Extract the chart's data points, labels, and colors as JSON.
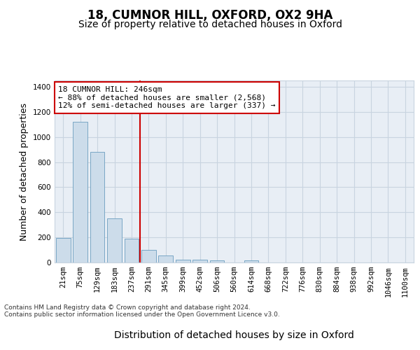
{
  "title": "18, CUMNOR HILL, OXFORD, OX2 9HA",
  "subtitle": "Size of property relative to detached houses in Oxford",
  "xlabel": "Distribution of detached houses by size in Oxford",
  "ylabel": "Number of detached properties",
  "categories": [
    "21sqm",
    "75sqm",
    "129sqm",
    "183sqm",
    "237sqm",
    "291sqm",
    "345sqm",
    "399sqm",
    "452sqm",
    "506sqm",
    "560sqm",
    "614sqm",
    "668sqm",
    "722sqm",
    "776sqm",
    "830sqm",
    "884sqm",
    "938sqm",
    "992sqm",
    "1046sqm",
    "1100sqm"
  ],
  "bar_heights": [
    195,
    1120,
    880,
    350,
    190,
    100,
    55,
    25,
    20,
    18,
    0,
    15,
    0,
    0,
    0,
    0,
    0,
    0,
    0,
    0,
    0
  ],
  "bar_color": "#ccdcea",
  "bar_edge_color": "#6a9dbf",
  "grid_color": "#c8d4e0",
  "background_color": "#e8eef5",
  "vline_x": 4.5,
  "vline_color": "#cc0000",
  "annotation_text": "18 CUMNOR HILL: 246sqm\n← 88% of detached houses are smaller (2,568)\n12% of semi-detached houses are larger (337) →",
  "annotation_box_color": "#ffffff",
  "annotation_box_edge_color": "#cc0000",
  "footer_text": "Contains HM Land Registry data © Crown copyright and database right 2024.\nContains public sector information licensed under the Open Government Licence v3.0.",
  "ylim": [
    0,
    1450
  ],
  "title_fontsize": 12,
  "subtitle_fontsize": 10,
  "xlabel_fontsize": 10,
  "ylabel_fontsize": 9,
  "tick_fontsize": 7.5,
  "annotation_fontsize": 8,
  "footer_fontsize": 6.5
}
